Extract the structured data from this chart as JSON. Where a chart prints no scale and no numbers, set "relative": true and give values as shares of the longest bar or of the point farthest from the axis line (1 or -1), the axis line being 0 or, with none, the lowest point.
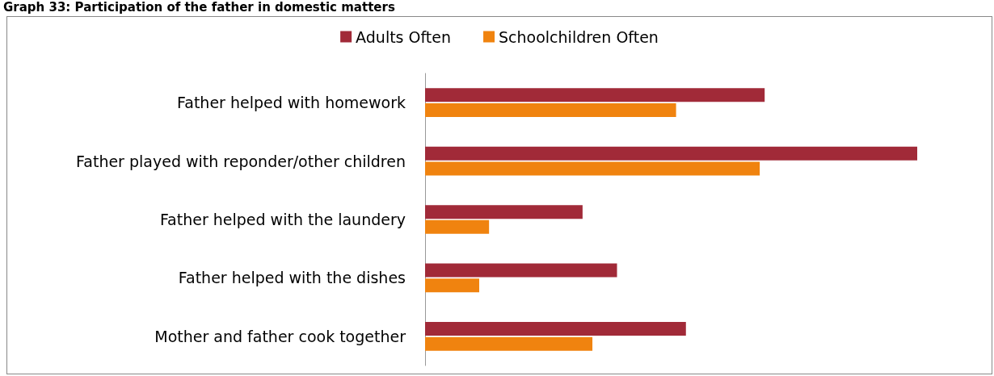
{
  "chart_data": {
    "type": "bar",
    "orientation": "horizontal",
    "relative": true,
    "title": "Graph 33: Participation of the father in domestic matters",
    "categories": [
      "Father helped with homework",
      "Father played with reponder/other children",
      "Father helped with the laundery",
      "Father helped with the dishes",
      "Mother and father cook together"
    ],
    "series": [
      {
        "name": "Adults Often",
        "color": "#a12a38",
        "values": [
          0.69,
          1,
          0.32,
          0.39,
          0.53
        ]
      },
      {
        "name": "Schoolchildren Often",
        "color": "#f0830f",
        "values": [
          0.51,
          0.68,
          0.13,
          0.11,
          0.34
        ]
      }
    ],
    "legend": "top"
  }
}
